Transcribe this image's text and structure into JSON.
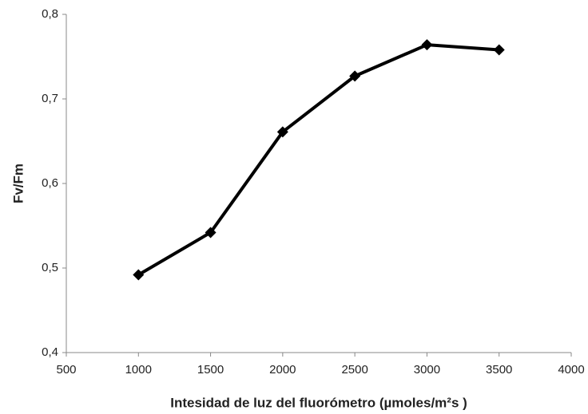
{
  "chart_data": {
    "type": "line",
    "x_label": "Intesidad de luz del fluorómetro (µmoles/m²s )",
    "y_label": "Fv/Fm",
    "x": [
      1000,
      1500,
      2000,
      2500,
      3000,
      3500
    ],
    "values": [
      0.492,
      0.542,
      0.661,
      0.727,
      0.764,
      0.758
    ],
    "color": "#000000",
    "xlim": [
      500,
      4000
    ],
    "xticks": [
      500,
      1000,
      1500,
      2000,
      2500,
      3000,
      3500,
      4000
    ],
    "ylim": [
      0.4,
      0.8
    ],
    "yticks": [
      {
        "value": 0.4,
        "label": "0,4"
      },
      {
        "value": 0.5,
        "label": "0,5"
      },
      {
        "value": 0.6,
        "label": "0,6"
      },
      {
        "value": 0.7,
        "label": "0,7"
      },
      {
        "value": 0.8,
        "label": "0,8"
      }
    ],
    "grid": false
  }
}
